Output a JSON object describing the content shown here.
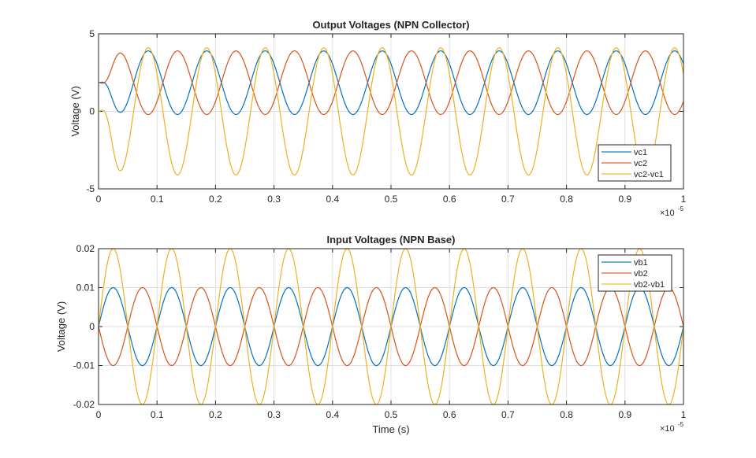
{
  "chart_data": [
    {
      "type": "line",
      "title": "Output Voltages (NPN Collector)",
      "xlabel": "",
      "ylabel": "Voltage (V)",
      "xlim": [
        0,
        1
      ],
      "ylim": [
        -5,
        5
      ],
      "x_exponent_label": "×10",
      "x_exponent": "-5",
      "xticks": [
        "0",
        "0.1",
        "0.2",
        "0.3",
        "0.4",
        "0.5",
        "0.6",
        "0.7",
        "0.8",
        "0.9",
        "1"
      ],
      "yticks": [
        "5",
        "0",
        "-5"
      ],
      "ytick_values": [
        5,
        0,
        -5
      ],
      "grid": true,
      "legend_position": "bottom-right",
      "period": 0.1,
      "series": [
        {
          "name": "vc1",
          "color": "#0072BD",
          "offset": 1.85,
          "amplitude": 2.05,
          "peak_time": 0.085,
          "sign": 1
        },
        {
          "name": "vc2",
          "color": "#D95319",
          "offset": 1.85,
          "amplitude": 2.05,
          "peak_time": 0.085,
          "sign": -1
        },
        {
          "name": "vc2-vc1",
          "color": "#EDB120",
          "offset": 0,
          "amplitude": 4.1,
          "peak_time": 0.085,
          "sign": 1
        }
      ]
    },
    {
      "type": "line",
      "title": "Input Voltages (NPN Base)",
      "xlabel": "Time (s)",
      "ylabel": "Voltage (V)",
      "xlim": [
        0,
        1
      ],
      "ylim": [
        -0.02,
        0.02
      ],
      "x_exponent_label": "×10",
      "x_exponent": "-5",
      "xticks": [
        "0",
        "0.1",
        "0.2",
        "0.3",
        "0.4",
        "0.5",
        "0.6",
        "0.7",
        "0.8",
        "0.9",
        "1"
      ],
      "yticks": [
        "0.02",
        "0.01",
        "0",
        "-0.01",
        "-0.02"
      ],
      "ytick_values": [
        0.02,
        0.01,
        0,
        -0.01,
        -0.02
      ],
      "grid": true,
      "legend_position": "top-right",
      "period": 0.1,
      "series": [
        {
          "name": "vb1",
          "color": "#0072BD",
          "offset": 0,
          "amplitude": 0.01,
          "peak_time": 0.025,
          "sign": 1
        },
        {
          "name": "vb2",
          "color": "#D95319",
          "offset": 0,
          "amplitude": 0.01,
          "peak_time": 0.025,
          "sign": -1
        },
        {
          "name": "vb2-vb1",
          "color": "#EDB120",
          "offset": 0,
          "amplitude": 0.02,
          "peak_time": 0.025,
          "sign": 1
        }
      ]
    }
  ]
}
